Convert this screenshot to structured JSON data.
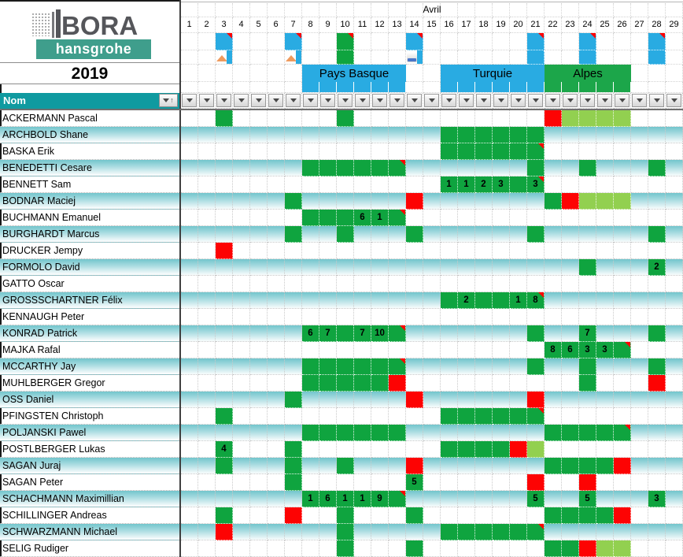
{
  "logo": {
    "brand": "BORA",
    "sub": "hansgrohe"
  },
  "year": "2019",
  "month": "Avril",
  "name_header": "Nom",
  "days": [
    1,
    2,
    3,
    4,
    5,
    6,
    7,
    8,
    9,
    10,
    11,
    12,
    13,
    14,
    15,
    16,
    17,
    18,
    19,
    20,
    21,
    22,
    23,
    24,
    25,
    26,
    27,
    28,
    29
  ],
  "colors": {
    "green": "#0fa43f",
    "red": "#fd0303",
    "light_green": "#92d050",
    "blue": "#29abe2",
    "teal_header": "#0f9aa0",
    "band_green": "#1ca64a",
    "stripe_top": "#72c5cc",
    "logo_band": "#3f9e8c"
  },
  "events": [
    {
      "label": "Pays Basque",
      "from": 8,
      "to": 13,
      "color": "blue"
    },
    {
      "label": "Turquie",
      "from": 16,
      "to": 21,
      "color": "blue"
    },
    {
      "label": "Alpes",
      "from": 22,
      "to": 26,
      "color": "green"
    }
  ],
  "event_day_strips": [
    {
      "from": 8,
      "to": 13,
      "color": "blue"
    },
    {
      "from": 16,
      "to": 21,
      "color": "blue"
    },
    {
      "from": 22,
      "to": 26,
      "color": "green"
    }
  ],
  "race_days": [
    {
      "day": 3,
      "color": "blue",
      "note": true
    },
    {
      "day": 7,
      "color": "blue",
      "note": true
    },
    {
      "day": 10,
      "color": "green",
      "note": true
    },
    {
      "day": 14,
      "color": "blue",
      "note": true
    },
    {
      "day": 21,
      "color": "blue",
      "note": true
    },
    {
      "day": 24,
      "color": "blue",
      "note": true
    },
    {
      "day": 28,
      "color": "blue",
      "note": true
    }
  ],
  "profile_icons": [
    {
      "day": 3,
      "icon": "mountain"
    },
    {
      "day": 7,
      "icon": "mountain"
    },
    {
      "day": 10,
      "icon": "green-fill"
    },
    {
      "day": 14,
      "icon": "flat"
    },
    {
      "day": 21,
      "icon": "blue-fill"
    },
    {
      "day": 24,
      "icon": "blue-fill"
    },
    {
      "day": 28,
      "icon": "blue-fill"
    }
  ],
  "riders": [
    {
      "name": "ACKERMANN Pascal",
      "cells": [
        {
          "d": 3,
          "c": "g"
        },
        {
          "d": 10,
          "c": "g"
        },
        {
          "d": 22,
          "c": "r"
        },
        {
          "d": 23,
          "c": "lg"
        },
        {
          "d": 24,
          "c": "lg"
        },
        {
          "d": 25,
          "c": "lg"
        },
        {
          "d": 26,
          "c": "lg"
        }
      ]
    },
    {
      "name": "ARCHBOLD Shane",
      "cells": [
        {
          "d": 16,
          "c": "g"
        },
        {
          "d": 17,
          "c": "g"
        },
        {
          "d": 18,
          "c": "g"
        },
        {
          "d": 19,
          "c": "g"
        },
        {
          "d": 20,
          "c": "g"
        },
        {
          "d": 21,
          "c": "g"
        }
      ]
    },
    {
      "name": "BASKA Erik",
      "cells": [
        {
          "d": 16,
          "c": "g"
        },
        {
          "d": 17,
          "c": "g"
        },
        {
          "d": 18,
          "c": "g"
        },
        {
          "d": 19,
          "c": "g"
        },
        {
          "d": 20,
          "c": "g"
        },
        {
          "d": 21,
          "c": "g",
          "n": true
        }
      ]
    },
    {
      "name": "BENEDETTI Cesare",
      "cells": [
        {
          "d": 8,
          "c": "g"
        },
        {
          "d": 9,
          "c": "g"
        },
        {
          "d": 10,
          "c": "g"
        },
        {
          "d": 11,
          "c": "g"
        },
        {
          "d": 12,
          "c": "g"
        },
        {
          "d": 13,
          "c": "g",
          "n": true
        },
        {
          "d": 21,
          "c": "g"
        },
        {
          "d": 24,
          "c": "g"
        },
        {
          "d": 28,
          "c": "g"
        }
      ]
    },
    {
      "name": "BENNETT Sam",
      "cells": [
        {
          "d": 16,
          "c": "g",
          "t": "1"
        },
        {
          "d": 17,
          "c": "g",
          "t": "1"
        },
        {
          "d": 18,
          "c": "g",
          "t": "2"
        },
        {
          "d": 19,
          "c": "g",
          "t": "3"
        },
        {
          "d": 20,
          "c": "g"
        },
        {
          "d": 21,
          "c": "g",
          "t": "3",
          "n": true
        }
      ]
    },
    {
      "name": "BODNAR Maciej",
      "cells": [
        {
          "d": 7,
          "c": "g"
        },
        {
          "d": 14,
          "c": "r"
        },
        {
          "d": 22,
          "c": "g"
        },
        {
          "d": 23,
          "c": "r"
        },
        {
          "d": 24,
          "c": "lg"
        },
        {
          "d": 25,
          "c": "lg"
        },
        {
          "d": 26,
          "c": "lg"
        }
      ]
    },
    {
      "name": "BUCHMANN Emanuel",
      "cells": [
        {
          "d": 8,
          "c": "g"
        },
        {
          "d": 9,
          "c": "g"
        },
        {
          "d": 10,
          "c": "g"
        },
        {
          "d": 11,
          "c": "g",
          "t": "6"
        },
        {
          "d": 12,
          "c": "g",
          "t": "1"
        },
        {
          "d": 13,
          "c": "g",
          "n": true
        }
      ]
    },
    {
      "name": "BURGHARDT Marcus",
      "cells": [
        {
          "d": 7,
          "c": "g"
        },
        {
          "d": 10,
          "c": "g"
        },
        {
          "d": 14,
          "c": "g"
        },
        {
          "d": 21,
          "c": "g"
        },
        {
          "d": 28,
          "c": "g"
        }
      ]
    },
    {
      "name": "DRUCKER Jempy",
      "cells": [
        {
          "d": 3,
          "c": "r"
        }
      ]
    },
    {
      "name": "FORMOLO David",
      "cells": [
        {
          "d": 24,
          "c": "g"
        },
        {
          "d": 28,
          "c": "g",
          "t": "2"
        }
      ]
    },
    {
      "name": "GATTO Oscar",
      "cells": []
    },
    {
      "name": "GROSSSCHARTNER Félix",
      "cells": [
        {
          "d": 16,
          "c": "g"
        },
        {
          "d": 17,
          "c": "g",
          "t": "2"
        },
        {
          "d": 18,
          "c": "g"
        },
        {
          "d": 19,
          "c": "g"
        },
        {
          "d": 20,
          "c": "g",
          "t": "1"
        },
        {
          "d": 21,
          "c": "g",
          "t": "8",
          "n": true
        }
      ]
    },
    {
      "name": "KENNAUGH Peter",
      "cells": []
    },
    {
      "name": "KONRAD Patrick",
      "cells": [
        {
          "d": 8,
          "c": "g",
          "t": "6"
        },
        {
          "d": 9,
          "c": "g",
          "t": "7"
        },
        {
          "d": 10,
          "c": "g"
        },
        {
          "d": 11,
          "c": "g",
          "t": "7"
        },
        {
          "d": 12,
          "c": "g",
          "t": "10"
        },
        {
          "d": 13,
          "c": "g",
          "n": true
        },
        {
          "d": 21,
          "c": "g"
        },
        {
          "d": 24,
          "c": "g",
          "t": "7"
        },
        {
          "d": 28,
          "c": "g"
        }
      ]
    },
    {
      "name": "MAJKA Rafal",
      "cells": [
        {
          "d": 22,
          "c": "g",
          "t": "8"
        },
        {
          "d": 23,
          "c": "g",
          "t": "6"
        },
        {
          "d": 24,
          "c": "g",
          "t": "3"
        },
        {
          "d": 25,
          "c": "g",
          "t": "3"
        },
        {
          "d": 26,
          "c": "g",
          "n": true
        }
      ]
    },
    {
      "name": "MCCARTHY Jay",
      "cells": [
        {
          "d": 8,
          "c": "g"
        },
        {
          "d": 9,
          "c": "g"
        },
        {
          "d": 10,
          "c": "g"
        },
        {
          "d": 11,
          "c": "g"
        },
        {
          "d": 12,
          "c": "g"
        },
        {
          "d": 13,
          "c": "g",
          "n": true
        },
        {
          "d": 21,
          "c": "g"
        },
        {
          "d": 24,
          "c": "g"
        },
        {
          "d": 28,
          "c": "g"
        }
      ]
    },
    {
      "name": "MUHLBERGER Gregor",
      "cells": [
        {
          "d": 8,
          "c": "g"
        },
        {
          "d": 9,
          "c": "g"
        },
        {
          "d": 10,
          "c": "g"
        },
        {
          "d": 11,
          "c": "g"
        },
        {
          "d": 12,
          "c": "g"
        },
        {
          "d": 13,
          "c": "r"
        },
        {
          "d": 24,
          "c": "g"
        },
        {
          "d": 28,
          "c": "r"
        }
      ]
    },
    {
      "name": "OSS Daniel",
      "cells": [
        {
          "d": 7,
          "c": "g"
        },
        {
          "d": 14,
          "c": "r"
        },
        {
          "d": 21,
          "c": "r"
        }
      ]
    },
    {
      "name": "PFINGSTEN Christoph",
      "cells": [
        {
          "d": 3,
          "c": "g"
        },
        {
          "d": 16,
          "c": "g"
        },
        {
          "d": 17,
          "c": "g"
        },
        {
          "d": 18,
          "c": "g"
        },
        {
          "d": 19,
          "c": "g"
        },
        {
          "d": 20,
          "c": "g"
        },
        {
          "d": 21,
          "c": "g",
          "n": true
        }
      ]
    },
    {
      "name": "POLJANSKI Pawel",
      "cells": [
        {
          "d": 8,
          "c": "g"
        },
        {
          "d": 9,
          "c": "g"
        },
        {
          "d": 10,
          "c": "g"
        },
        {
          "d": 11,
          "c": "g"
        },
        {
          "d": 12,
          "c": "g"
        },
        {
          "d": 13,
          "c": "g"
        },
        {
          "d": 22,
          "c": "g"
        },
        {
          "d": 23,
          "c": "g"
        },
        {
          "d": 24,
          "c": "g"
        },
        {
          "d": 25,
          "c": "g"
        },
        {
          "d": 26,
          "c": "g",
          "n": true
        }
      ]
    },
    {
      "name": "POSTLBERGER Lukas",
      "cells": [
        {
          "d": 3,
          "c": "g",
          "t": "4"
        },
        {
          "d": 7,
          "c": "g"
        },
        {
          "d": 16,
          "c": "g"
        },
        {
          "d": 17,
          "c": "g"
        },
        {
          "d": 18,
          "c": "g"
        },
        {
          "d": 19,
          "c": "g"
        },
        {
          "d": 20,
          "c": "r"
        },
        {
          "d": 21,
          "c": "lg"
        }
      ]
    },
    {
      "name": "SAGAN Juraj",
      "cells": [
        {
          "d": 3,
          "c": "g"
        },
        {
          "d": 7,
          "c": "g"
        },
        {
          "d": 10,
          "c": "g"
        },
        {
          "d": 14,
          "c": "r"
        },
        {
          "d": 22,
          "c": "g"
        },
        {
          "d": 23,
          "c": "g"
        },
        {
          "d": 24,
          "c": "g"
        },
        {
          "d": 25,
          "c": "g"
        },
        {
          "d": 26,
          "c": "r"
        }
      ]
    },
    {
      "name": "SAGAN Peter",
      "cells": [
        {
          "d": 7,
          "c": "g"
        },
        {
          "d": 14,
          "c": "g",
          "t": "5"
        },
        {
          "d": 21,
          "c": "r"
        },
        {
          "d": 24,
          "c": "r"
        }
      ]
    },
    {
      "name": "SCHACHMANN Maximillian",
      "cells": [
        {
          "d": 8,
          "c": "g",
          "t": "1"
        },
        {
          "d": 9,
          "c": "g",
          "t": "6"
        },
        {
          "d": 10,
          "c": "g",
          "t": "1"
        },
        {
          "d": 11,
          "c": "g",
          "t": "1"
        },
        {
          "d": 12,
          "c": "g",
          "t": "9"
        },
        {
          "d": 13,
          "c": "g",
          "n": true
        },
        {
          "d": 21,
          "c": "g",
          "t": "5"
        },
        {
          "d": 24,
          "c": "g",
          "t": "5"
        },
        {
          "d": 28,
          "c": "g",
          "t": "3"
        }
      ]
    },
    {
      "name": "SCHILLINGER Andreas",
      "cells": [
        {
          "d": 3,
          "c": "g"
        },
        {
          "d": 7,
          "c": "r"
        },
        {
          "d": 10,
          "c": "g"
        },
        {
          "d": 14,
          "c": "g"
        },
        {
          "d": 22,
          "c": "g"
        },
        {
          "d": 23,
          "c": "g"
        },
        {
          "d": 24,
          "c": "g"
        },
        {
          "d": 25,
          "c": "g"
        },
        {
          "d": 26,
          "c": "r"
        }
      ]
    },
    {
      "name": "SCHWARZMANN Michael",
      "cells": [
        {
          "d": 3,
          "c": "r"
        },
        {
          "d": 10,
          "c": "g"
        },
        {
          "d": 16,
          "c": "g"
        },
        {
          "d": 17,
          "c": "g"
        },
        {
          "d": 18,
          "c": "g"
        },
        {
          "d": 19,
          "c": "g"
        },
        {
          "d": 20,
          "c": "g"
        },
        {
          "d": 21,
          "c": "g",
          "n": true
        }
      ]
    },
    {
      "name": "SELIG Rudiger",
      "cells": [
        {
          "d": 10,
          "c": "g"
        },
        {
          "d": 14,
          "c": "g"
        },
        {
          "d": 22,
          "c": "g"
        },
        {
          "d": 23,
          "c": "g"
        },
        {
          "d": 24,
          "c": "r"
        },
        {
          "d": 25,
          "c": "lg"
        },
        {
          "d": 26,
          "c": "lg"
        }
      ]
    }
  ]
}
